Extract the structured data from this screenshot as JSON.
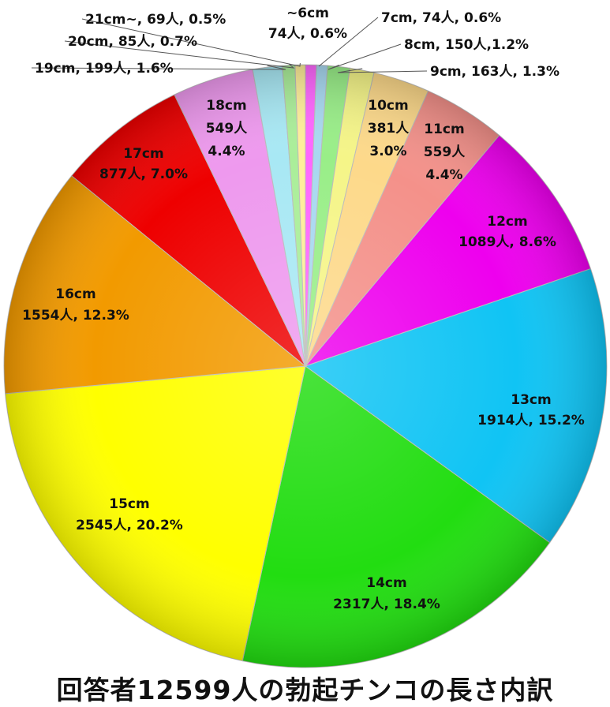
{
  "chart_data": {
    "type": "pie",
    "title": "回答者12599人の勃起チンコの長さ内訳",
    "slices": [
      {
        "category": "~6cm",
        "count": 74,
        "percent": 0.6,
        "color": "#ff66ff",
        "label_lines": [
          "~6cm",
          "74人, 0.6%"
        ]
      },
      {
        "category": "7cm",
        "count": 74,
        "percent": 0.6,
        "color": "#a8d8f0",
        "label_lines": [
          "7cm, 74人, 0.6%"
        ]
      },
      {
        "category": "8cm",
        "count": 150,
        "percent": 1.2,
        "color": "#99ee88",
        "label_lines": [
          "8cm, 150人,1.2%"
        ]
      },
      {
        "category": "9cm",
        "count": 163,
        "percent": 1.3,
        "color": "#f5f588",
        "label_lines": [
          "9cm, 163人, 1.3%"
        ]
      },
      {
        "category": "10cm",
        "count": 381,
        "percent": 3.0,
        "color": "#fdd98a",
        "label_lines": [
          "10cm",
          "381人",
          "3.0%"
        ]
      },
      {
        "category": "11cm",
        "count": 559,
        "percent": 4.4,
        "color": "#f4918a",
        "label_lines": [
          "11cm",
          "559人",
          "4.4%"
        ]
      },
      {
        "category": "12cm",
        "count": 1089,
        "percent": 8.6,
        "color": "#ee00ee",
        "label_lines": [
          "12cm",
          "1089人, 8.6%"
        ]
      },
      {
        "category": "13cm",
        "count": 1914,
        "percent": 15.2,
        "color": "#10c4f4",
        "label_lines": [
          "13cm",
          "1914人, 15.2%"
        ]
      },
      {
        "category": "14cm",
        "count": 2317,
        "percent": 18.4,
        "color": "#22dd11",
        "label_lines": [
          "14cm",
          "2317人, 18.4%"
        ]
      },
      {
        "category": "15cm",
        "count": 2545,
        "percent": 20.2,
        "color": "#ffff00",
        "label_lines": [
          "15cm",
          "2545人, 20.2%"
        ]
      },
      {
        "category": "16cm",
        "count": 1554,
        "percent": 12.3,
        "color": "#f29a00",
        "label_lines": [
          "16cm",
          "1554人, 12.3%"
        ]
      },
      {
        "category": "17cm",
        "count": 877,
        "percent": 7.0,
        "color": "#ee0000",
        "label_lines": [
          "17cm",
          "877人, 7.0%"
        ]
      },
      {
        "category": "18cm",
        "count": 549,
        "percent": 4.4,
        "color": "#ee99ee",
        "label_lines": [
          "18cm",
          "549人",
          "4.4%"
        ]
      },
      {
        "category": "19cm",
        "count": 199,
        "percent": 1.6,
        "color": "#a8e8f4",
        "label_lines": [
          "19cm, 199人, 1.6%"
        ]
      },
      {
        "category": "20cm",
        "count": 85,
        "percent": 0.7,
        "color": "#aaee99",
        "label_lines": [
          "20cm, 85人, 0.7%"
        ]
      },
      {
        "category": "21cm~",
        "count": 69,
        "percent": 0.5,
        "color": "#ffee99",
        "label_lines": [
          "21cm~, 69人, 0.5%"
        ]
      }
    ]
  }
}
